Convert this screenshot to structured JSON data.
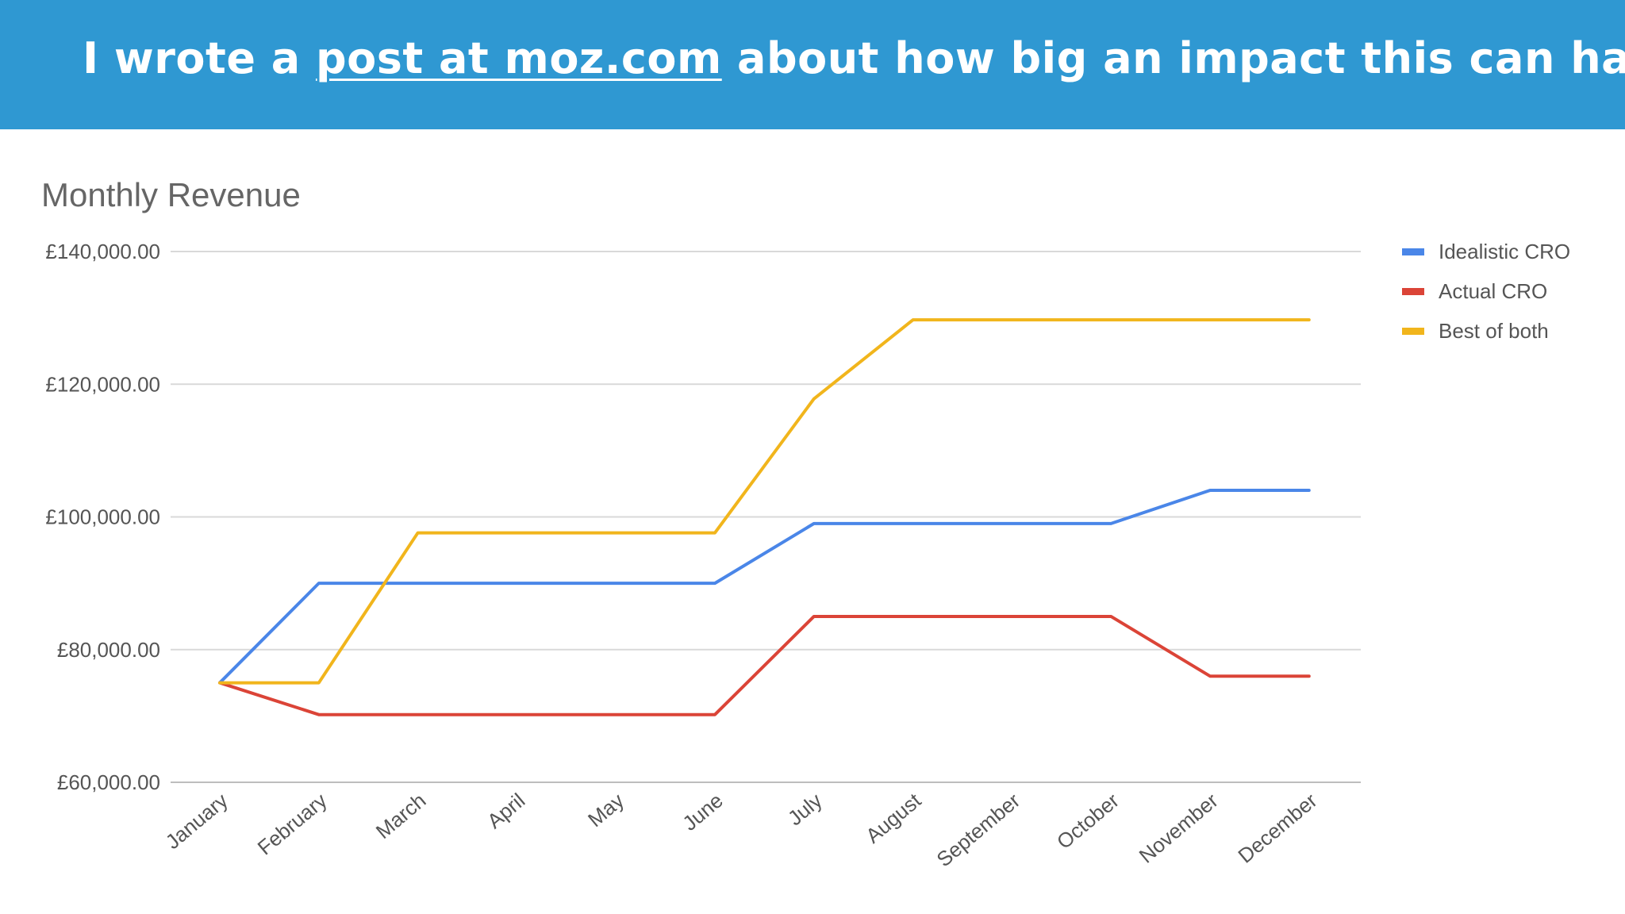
{
  "banner": {
    "text_before": "I wrote a ",
    "link_text": "post at moz.com",
    "text_after": " about how big an impact this can have",
    "background": "#2f98d2"
  },
  "chart_data": {
    "type": "line",
    "title": "Monthly Revenue",
    "xlabel": "",
    "ylabel": "",
    "categories": [
      "January",
      "February",
      "March",
      "April",
      "May",
      "June",
      "July",
      "August",
      "September",
      "October",
      "November",
      "December"
    ],
    "y_ticks": [
      "£60,000.00",
      "£80,000.00",
      "£100,000.00",
      "£120,000.00",
      "£140,000.00"
    ],
    "y_tick_values": [
      60000,
      80000,
      100000,
      120000,
      140000
    ],
    "ylim": [
      60000,
      140000
    ],
    "grid": true,
    "legend_position": "right",
    "series": [
      {
        "name": "Idealistic CRO",
        "color": "#4a86e8",
        "values": [
          75000,
          90000,
          90000,
          90000,
          90000,
          90000,
          99000,
          99000,
          99000,
          99000,
          104000,
          104000
        ]
      },
      {
        "name": "Actual CRO",
        "color": "#db4437",
        "values": [
          75000,
          70200,
          70200,
          70200,
          70200,
          70200,
          85000,
          85000,
          85000,
          85000,
          76000,
          76000
        ]
      },
      {
        "name": "Best of both",
        "color": "#f1b51c",
        "values": [
          75000,
          75000,
          97600,
          97600,
          97600,
          97600,
          117800,
          129700,
          129700,
          129700,
          129700,
          129700
        ]
      }
    ]
  }
}
